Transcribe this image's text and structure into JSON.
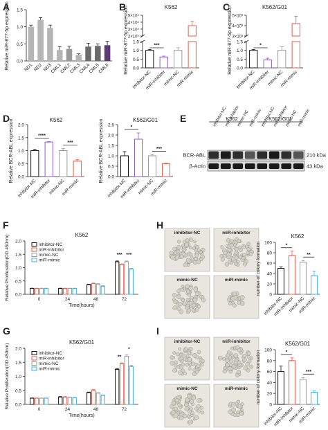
{
  "panels": {
    "A": "A",
    "B": "B",
    "C": "C",
    "D": "D",
    "E": "E",
    "F": "F",
    "G": "G",
    "H": "H",
    "I": "I"
  },
  "colors": {
    "black": "#111111",
    "purple": "#8e5cc9",
    "gray": "#9a9a9a",
    "red": "#e85b4a",
    "cyan": "#3aaee0",
    "ptGray": "#b5b5b5",
    "ptDark": "#6b6b6b",
    "ptPurple": "#5a3b73"
  },
  "sig_stars": {
    "p3": "***",
    "p1": "*",
    "p4": "****",
    "p2": "**"
  },
  "chart_data": [
    {
      "id": "A",
      "type": "bar",
      "title": "",
      "ylabel": "Relative miR-877-5p expression",
      "categories": [
        "ND1",
        "ND2",
        "ND3",
        "CML1",
        "CML2",
        "CML3",
        "CML4",
        "CML5",
        "CML6"
      ],
      "values": [
        1.0,
        1.2,
        0.97,
        0.32,
        0.35,
        0.18,
        0.42,
        0.44,
        0.46
      ],
      "errors": [
        0.05,
        0.07,
        0.08,
        0.1,
        0.08,
        0.03,
        0.1,
        0.06,
        0.12
      ],
      "yticks": [
        "0.0",
        "0.5",
        "1.0",
        "1.5"
      ],
      "ylim": [
        0,
        1.5
      ],
      "colors": [
        "#b5b5b5",
        "#b5b5b5",
        "#b5b5b5",
        "#b5b5b5",
        "#9a9a9a",
        "#b5b5b5",
        "#6b6b6b",
        "#6b6b6b",
        "#5a3b73"
      ]
    },
    {
      "id": "B",
      "type": "bar",
      "title": "K562",
      "ylabel": "Relative miR-877-5p expression",
      "categories": [
        "inhibitor-NC",
        "miR-inhibitor",
        "mimic-NC",
        "miR-mimic"
      ],
      "values": [
        1.0,
        0.62,
        1.0,
        35000
      ],
      "errors": [
        0.05,
        0.05,
        0.15,
        6000
      ],
      "yticks_low": [
        "0.0",
        "0.5",
        "1.0",
        "1.5"
      ],
      "yticks_high": [
        "2×10⁴",
        "3×10⁴",
        "4×10⁴",
        "5×10⁴"
      ],
      "sig": [
        {
          "pair": [
            0,
            1
          ],
          "label": "***"
        }
      ]
    },
    {
      "id": "C",
      "type": "bar",
      "title": "K562/G01",
      "ylabel": "Relative miR-877-5p expression",
      "categories": [
        "inhibitor-NC",
        "miR-inhibitor",
        "mimic-NC",
        "miR-mimic"
      ],
      "values": [
        1.0,
        0.45,
        1.0,
        4200
      ],
      "errors": [
        0.05,
        0.1,
        0.2,
        700
      ],
      "yticks_low": [
        "0.0",
        "0.5",
        "1.0",
        "1.5"
      ],
      "yticks_high": [
        "3×10³",
        "4×10³",
        "5×10³"
      ],
      "sig": [
        {
          "pair": [
            0,
            1
          ],
          "label": "*"
        }
      ]
    },
    {
      "id": "D1",
      "type": "bar",
      "title": "K562",
      "ylabel": "Relative BCR-ABL expression",
      "categories": [
        "inhibitor-NC",
        "miR-inhibitor",
        "mimic-NC",
        "miR-mimic"
      ],
      "values": [
        1.0,
        1.33,
        1.0,
        0.6
      ],
      "errors": [
        0.05,
        0.02,
        0.08,
        0.05
      ],
      "yticks": [
        "0.0",
        "0.5",
        "1.0",
        "1.5",
        "2.0"
      ],
      "ylim": [
        0,
        2.0
      ],
      "sig": [
        {
          "pair": [
            0,
            1
          ],
          "label": "****"
        },
        {
          "pair": [
            2,
            3
          ],
          "label": "***"
        }
      ]
    },
    {
      "id": "D2",
      "type": "bar",
      "title": "K562/G01",
      "ylabel": "Relative BCR-ABL expression",
      "categories": [
        "inhibitor-NC",
        "miR-inhibitor",
        "mimic-NC",
        "miR-mimic"
      ],
      "values": [
        1.0,
        1.8,
        1.0,
        0.62
      ],
      "errors": [
        0.2,
        0.3,
        0.05,
        0.03
      ],
      "yticks": [
        "0.0",
        "0.5",
        "1.0",
        "1.5",
        "2.0",
        "2.5"
      ],
      "ylim": [
        0,
        2.5
      ],
      "sig": [
        {
          "pair": [
            0,
            1
          ],
          "label": "*"
        },
        {
          "pair": [
            2,
            3
          ],
          "label": "***"
        }
      ]
    },
    {
      "id": "E",
      "type": "blot",
      "groups": [
        "K562",
        "K562/G01"
      ],
      "lanes": [
        "inhibitor-NC",
        "miR-inhibitor",
        "mimic-NC",
        "miR-mimic",
        "inhibitor-NC",
        "miR-inhibitor",
        "mimic-NC",
        "miR-mimic"
      ],
      "rows": [
        {
          "label": "BCR-ABL",
          "kda": "210 kDa"
        },
        {
          "label": "β-Actin",
          "kda": "43 kDa"
        }
      ]
    },
    {
      "id": "F",
      "type": "bar",
      "title": "K562",
      "xlabel": "Time(hours)",
      "ylabel": "Relative Proliferation(OD 450nm)",
      "categories": [
        "0",
        "24",
        "48",
        "72"
      ],
      "series": [
        {
          "name": "inhibitor-NC",
          "values": [
            0.22,
            0.22,
            0.36,
            1.22
          ],
          "errors": [
            0.01,
            0.01,
            0.02,
            0.03
          ]
        },
        {
          "name": "miR-inhibitor",
          "values": [
            0.22,
            0.22,
            0.4,
            1.12
          ],
          "errors": [
            0.01,
            0.01,
            0.02,
            0.02
          ]
        },
        {
          "name": "mimic-NC",
          "values": [
            0.22,
            0.22,
            0.38,
            1.22
          ],
          "errors": [
            0.01,
            0.01,
            0.02,
            0.03
          ]
        },
        {
          "name": "miR-mimic",
          "values": [
            0.22,
            0.22,
            0.3,
            0.95
          ],
          "errors": [
            0.01,
            0.01,
            0.02,
            0.02
          ]
        }
      ],
      "yticks": [
        "0.0",
        "0.5",
        "1.0",
        "1.5",
        "2.0"
      ],
      "ylim": [
        0,
        2.0
      ],
      "sig": [
        {
          "pair": [
            0,
            1
          ],
          "cat": 3,
          "label": "***"
        },
        {
          "pair": [
            2,
            3
          ],
          "cat": 3,
          "label": "***"
        }
      ]
    },
    {
      "id": "G",
      "type": "bar",
      "title": "K562/G01",
      "xlabel": "Time(hours)",
      "ylabel": "Relative Proliferation(OD 450nm)",
      "categories": [
        "0",
        "24",
        "48",
        "72"
      ],
      "series": [
        {
          "name": "inhibitor-NC",
          "values": [
            0.22,
            0.26,
            0.42,
            1.25
          ],
          "errors": [
            0.01,
            0.02,
            0.02,
            0.03
          ]
        },
        {
          "name": "miR-inhibitor",
          "values": [
            0.22,
            0.26,
            0.5,
            1.45
          ],
          "errors": [
            0.01,
            0.02,
            0.03,
            0.03
          ]
        },
        {
          "name": "mimic-NC",
          "values": [
            0.22,
            0.25,
            0.4,
            1.72
          ],
          "errors": [
            0.01,
            0.01,
            0.02,
            0.05
          ]
        },
        {
          "name": "miR-mimic",
          "values": [
            0.22,
            0.24,
            0.32,
            1.35
          ],
          "errors": [
            0.01,
            0.01,
            0.02,
            0.04
          ]
        }
      ],
      "yticks": [
        "0.0",
        "0.5",
        "1.0",
        "1.5",
        "2.0"
      ],
      "ylim": [
        0,
        2.0
      ],
      "sig": [
        {
          "pair": [
            0,
            1
          ],
          "cat": 3,
          "label": "**"
        },
        {
          "pair": [
            2,
            3
          ],
          "cat": 3,
          "label": "*"
        }
      ]
    },
    {
      "id": "H",
      "type": "bar",
      "title": "K562",
      "ylabel": "number of colony formation",
      "categories": [
        "inhibitor-NC",
        "miR-inhibitor",
        "mimic-NC",
        "miR-mimic"
      ],
      "values": [
        50,
        75,
        62,
        36
      ],
      "errors": [
        3,
        8,
        3,
        8
      ],
      "yticks": [
        "0",
        "20",
        "40",
        "60",
        "80",
        "100"
      ],
      "ylim": [
        0,
        100
      ],
      "sig": [
        {
          "pair": [
            0,
            1
          ],
          "label": "*"
        },
        {
          "pair": [
            2,
            3
          ],
          "label": "**"
        }
      ]
    },
    {
      "id": "I",
      "type": "bar",
      "title": "K562/G01",
      "ylabel": "number of colony formation",
      "categories": [
        "inhibitor-NC",
        "miR-inhibitor",
        "mimic-NC",
        "miR-mimic"
      ],
      "values": [
        60,
        80,
        46,
        22
      ],
      "errors": [
        10,
        5,
        3,
        3
      ],
      "yticks": [
        "0",
        "20",
        "40",
        "60",
        "80",
        "100"
      ],
      "ylim": [
        0,
        100
      ],
      "sig": [
        {
          "pair": [
            0,
            1
          ],
          "label": "*"
        },
        {
          "pair": [
            2,
            3
          ],
          "label": "***"
        }
      ]
    }
  ],
  "photos": {
    "H": [
      "inhibitor-NC",
      "miR-inhibitor",
      "mimic-NC",
      "miR-mimic"
    ],
    "I": [
      "inhibitor-NC",
      "miR-inhibitor",
      "mimic-NC",
      "miR-mimic"
    ]
  }
}
